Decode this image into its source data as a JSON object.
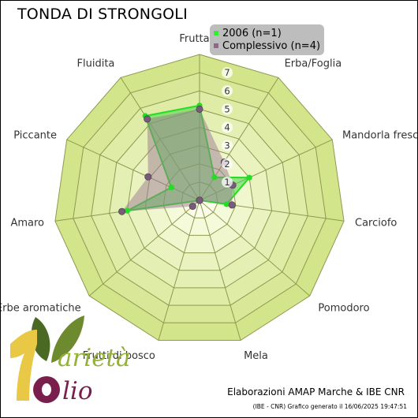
{
  "title": "TONDA DI STRONGOLI",
  "legend": [
    {
      "label": "2006 (n=1)",
      "color": "#33ee33"
    },
    {
      "label": "Complessivo (n=4)",
      "color": "#8a6a86"
    }
  ],
  "footer": {
    "credit": "Elaborazioni AMAP Marche & IBE CNR",
    "generated": "(IBE - CNR) Grafico generato il 16/06/2025 19:47:51"
  },
  "logo": {
    "text_top": "arietà",
    "text_bottom": "lio"
  },
  "watermark": {
    "text": "olio"
  },
  "colors": {
    "ring_outer": "#d3e58a",
    "ring_inner": "#fbfde9",
    "grid": "#8c9a50",
    "series_2006_fill": "#4bd44b",
    "series_2006_line": "#22dd22",
    "series_complessivo_fill": "#9a7a90",
    "series_complessivo_point": "#7a5a7a"
  },
  "chart_data": {
    "type": "radar",
    "title": "TONDA DI STRONGOLI",
    "categories": [
      "Fruttato",
      "Erba/Foglia",
      "Mandorla fresca",
      "Carciofo",
      "Pomodoro",
      "Mela",
      "Frutti di bosco",
      "Erbe aromatiche",
      "Amaro",
      "Piccante",
      "Fluidita"
    ],
    "rlim": [
      0,
      8
    ],
    "ticks": [
      1,
      2,
      3,
      4,
      5,
      6,
      7
    ],
    "series": [
      {
        "name": "2006 (n=1)",
        "values": [
          5.2,
          1.5,
          3.0,
          1.5,
          0.0,
          0.0,
          0.0,
          0.0,
          4.0,
          1.7,
          5.5
        ]
      },
      {
        "name": "Complessivo (n=4)",
        "values": [
          5.0,
          2.5,
          2.0,
          1.8,
          0.0,
          0.0,
          0.0,
          0.5,
          4.3,
          3.1,
          5.3
        ]
      }
    ],
    "legend_position": "top-right",
    "grid": true
  }
}
